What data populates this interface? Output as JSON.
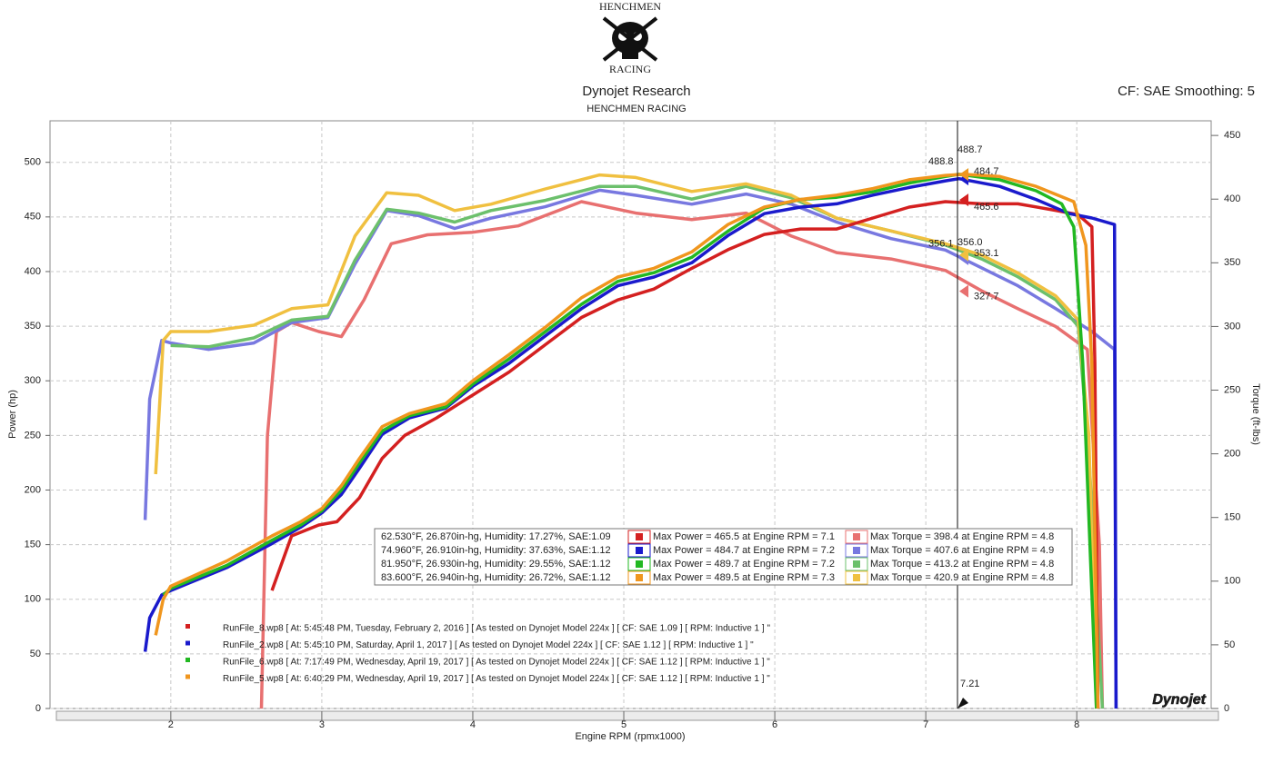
{
  "header": {
    "logo_top": "HENCHMEN",
    "logo_bottom": "RACING",
    "title": "Dynojet Research",
    "subtitle": "HENCHMEN RACING",
    "settings": "CF: SAE Smoothing: 5"
  },
  "chart_data": {
    "type": "line",
    "x_label": "Engine RPM (rpmx1000)",
    "y_label": "Power (hp)",
    "y2_label": "Torque (ft-lbs)",
    "xlim": [
      1.2,
      8.89
    ],
    "xticks": [
      2,
      3,
      4,
      5,
      6,
      7,
      8
    ],
    "ylim": [
      0,
      538
    ],
    "yticks": [
      0,
      50,
      100,
      150,
      200,
      250,
      300,
      350,
      400,
      450,
      500
    ],
    "y2lim": [
      0,
      461.5
    ],
    "y2ticks": [
      0,
      50,
      100,
      150,
      200,
      250,
      300,
      350,
      400,
      450
    ],
    "grid": true,
    "series": [
      {
        "color": "#d42020",
        "axis": "y",
        "x": [
          2.67,
          2.8,
          2.98,
          3.1,
          3.25,
          3.4,
          3.55,
          3.76,
          4.0,
          4.24,
          4.48,
          4.72,
          4.96,
          5.2,
          5.45,
          5.69,
          5.93,
          6.17,
          6.41,
          6.65,
          6.89,
          7.13,
          7.37,
          7.61,
          7.86,
          8.01,
          8.1,
          8.12,
          8.14
        ],
        "values": [
          108,
          158,
          168,
          171,
          193,
          229,
          250,
          266,
          287,
          308,
          333,
          358,
          374,
          384,
          403,
          420,
          434,
          439,
          439,
          449,
          459,
          464,
          462,
          462,
          456,
          452,
          441,
          316,
          0
        ]
      },
      {
        "color": "#1a1acc",
        "axis": "y",
        "x": [
          1.83,
          1.86,
          1.94,
          2.0,
          2.37,
          2.67,
          2.86,
          3.0,
          3.13,
          3.25,
          3.4,
          3.58,
          3.82,
          4.0,
          4.24,
          4.48,
          4.72,
          4.96,
          5.2,
          5.45,
          5.69,
          5.93,
          6.17,
          6.41,
          6.65,
          6.89,
          7.13,
          7.22,
          7.49,
          7.73,
          7.95,
          8.1,
          8.25,
          8.26
        ],
        "values": [
          52,
          83,
          104,
          108,
          129,
          151,
          166,
          179,
          196,
          220,
          251,
          266,
          275,
          295,
          316,
          341,
          366,
          387,
          395,
          408,
          433,
          453,
          459,
          462,
          470,
          477,
          483,
          485,
          478,
          466,
          453,
          449,
          443,
          0
        ]
      },
      {
        "color": "#22b822",
        "axis": "y",
        "x": [
          1.95,
          2.0,
          2.37,
          2.67,
          2.86,
          3.0,
          3.13,
          3.25,
          3.4,
          3.58,
          3.82,
          4.0,
          4.24,
          4.48,
          4.72,
          4.96,
          5.2,
          5.45,
          5.69,
          5.93,
          6.17,
          6.41,
          6.65,
          6.89,
          7.13,
          7.22,
          7.49,
          7.73,
          7.9,
          7.98,
          8.04,
          8.13
        ],
        "values": [
          104,
          110,
          131,
          154,
          168,
          181,
          200,
          225,
          254,
          268,
          276,
          297,
          320,
          345,
          370,
          391,
          399,
          413,
          437,
          458,
          466,
          468,
          473,
          481,
          487,
          489,
          484,
          474,
          462,
          441,
          316,
          0
        ]
      },
      {
        "color": "#f0961e",
        "axis": "y",
        "x": [
          1.9,
          1.95,
          2.0,
          2.37,
          2.67,
          2.86,
          3.0,
          3.13,
          3.25,
          3.4,
          3.58,
          3.82,
          4.0,
          4.24,
          4.48,
          4.72,
          4.96,
          5.2,
          5.45,
          5.69,
          5.93,
          6.17,
          6.41,
          6.65,
          6.89,
          7.13,
          7.25,
          7.49,
          7.73,
          7.98,
          8.06,
          8.1,
          8.14
        ],
        "values": [
          67,
          100,
          112,
          135,
          158,
          171,
          183,
          204,
          229,
          258,
          270,
          279,
          300,
          324,
          349,
          376,
          395,
          403,
          418,
          443,
          459,
          466,
          470,
          476,
          484,
          488,
          489,
          487,
          478,
          464,
          424,
          316,
          0
        ]
      },
      {
        "color": "#e87070",
        "axis": "y2",
        "x": [
          2.6,
          2.64,
          2.7,
          2.8,
          2.98,
          3.13,
          3.28,
          3.46,
          3.7,
          4.0,
          4.3,
          4.72,
          5.08,
          5.45,
          5.81,
          6.11,
          6.41,
          6.77,
          7.13,
          7.37,
          7.61,
          7.86,
          8.07,
          8.15,
          8.17
        ],
        "values": [
          0,
          214,
          296,
          303,
          296,
          292,
          321,
          365,
          372,
          374,
          379,
          398,
          389,
          384,
          389,
          371,
          358,
          353,
          344,
          328,
          314,
          300,
          282,
          128,
          0
        ]
      },
      {
        "color": "#7878e0",
        "axis": "y2",
        "x": [
          1.83,
          1.86,
          1.94,
          2.0,
          2.25,
          2.55,
          2.8,
          3.04,
          3.22,
          3.43,
          3.64,
          3.88,
          4.12,
          4.48,
          4.84,
          5.08,
          5.45,
          5.81,
          6.11,
          6.41,
          6.77,
          7.13,
          7.37,
          7.61,
          7.86,
          8.1,
          8.25,
          8.26
        ],
        "values": [
          148,
          243,
          289,
          287,
          282,
          287,
          303,
          307,
          349,
          391,
          387,
          377,
          385,
          394,
          407,
          403,
          396,
          404,
          396,
          382,
          369,
          360,
          346,
          332,
          314,
          296,
          282,
          0
        ]
      },
      {
        "color": "#6cc06c",
        "axis": "y2",
        "x": [
          2.0,
          2.25,
          2.55,
          2.8,
          3.04,
          3.22,
          3.43,
          3.64,
          3.88,
          4.12,
          4.48,
          4.84,
          5.08,
          5.45,
          5.81,
          6.11,
          6.41,
          6.77,
          7.13,
          7.37,
          7.61,
          7.86,
          8.01,
          8.08,
          8.17
        ],
        "values": [
          285,
          284,
          291,
          305,
          308,
          352,
          392,
          389,
          382,
          391,
          399,
          410,
          410,
          400,
          410,
          401,
          385,
          375,
          364,
          353,
          339,
          321,
          300,
          200,
          0
        ]
      },
      {
        "color": "#f0c040",
        "axis": "y2",
        "x": [
          1.9,
          1.95,
          2.0,
          2.25,
          2.55,
          2.8,
          3.04,
          3.22,
          3.43,
          3.64,
          3.88,
          4.12,
          4.48,
          4.84,
          5.08,
          5.45,
          5.81,
          6.11,
          6.41,
          6.77,
          7.13,
          7.37,
          7.61,
          7.86,
          8.01,
          8.08,
          8.13
        ],
        "values": [
          184,
          289,
          296,
          296,
          301,
          314,
          317,
          371,
          405,
          403,
          391,
          396,
          408,
          419,
          417,
          406,
          412,
          403,
          385,
          375,
          365,
          356,
          342,
          324,
          305,
          214,
          0
        ]
      }
    ],
    "cursor": 7.21,
    "peak_labels": [
      {
        "value": 488.7,
        "axis": "y",
        "color": "#22b822"
      },
      {
        "value": 484.7,
        "axis": "y",
        "color": "#1a1acc"
      },
      {
        "value": 465.6,
        "axis": "y",
        "color": "#d42020"
      },
      {
        "value": 488.8,
        "axis": "y",
        "color": "#f0961e"
      },
      {
        "value": 356,
        "label": "356.0",
        "axis": "y2",
        "color": "#6cc06c"
      },
      {
        "value": 353.1,
        "axis": "y2",
        "color": "#7878e0"
      },
      {
        "value": 327.7,
        "axis": "y2",
        "color": "#e87070"
      },
      {
        "value": 356.1,
        "axis": "y2",
        "color": "#f0c040"
      }
    ],
    "info_rows": [
      {
        "conditions": "62.530°F, 26.870in-hg, Humidity: 17.27%, SAE:1.09",
        "max_power": "Max Power = 465.5 at Engine RPM = 7.1",
        "max_torque": "Max Torque = 398.4 at Engine RPM = 4.8"
      },
      {
        "conditions": "74.960°F, 26.910in-hg, Humidity: 37.63%, SAE:1.12",
        "max_power": "Max Power = 484.7 at Engine RPM = 7.2",
        "max_torque": "Max Torque = 407.6 at Engine RPM = 4.9"
      },
      {
        "conditions": "81.950°F, 26.930in-hg, Humidity: 29.55%, SAE:1.12",
        "max_power": "Max Power = 489.7 at Engine RPM = 7.2",
        "max_torque": "Max Torque = 413.2 at Engine RPM = 4.8"
      },
      {
        "conditions": "83.600°F, 26.940in-hg, Humidity: 26.72%, SAE:1.12",
        "max_power": "Max Power = 489.5 at Engine RPM = 7.3",
        "max_torque": "Max Torque = 420.9 at Engine RPM = 4.8"
      }
    ],
    "files": [
      "RunFile_8.wp8 [ At: 5:45:48 PM, Tuesday, February 2, 2016 ] [ As tested on Dynojet Model 224x ] [ CF: SAE 1.09 ] [ RPM: Inductive 1 ] \"",
      "RunFile_2.wp8 [ At: 5:45:10 PM, Saturday, April 1, 2017 ] [ As tested on Dynojet Model 224x ] [ CF: SAE 1.12 ] [ RPM: Inductive 1 ] \"",
      "RunFile_6.wp8 [ At: 7:17:49 PM, Wednesday, April 19, 2017 ] [ As tested on Dynojet Model 224x ] [ CF: SAE 1.12 ] [ RPM: Inductive 1 ] \"",
      "RunFile_5.wp8 [ At: 6:40:29 PM, Wednesday, April 19, 2017 ] [ As tested on Dynojet Model 224x ] [ CF: SAE 1.12 ] [ RPM: Inductive 1 ] \""
    ],
    "brand": "Dynojet"
  }
}
